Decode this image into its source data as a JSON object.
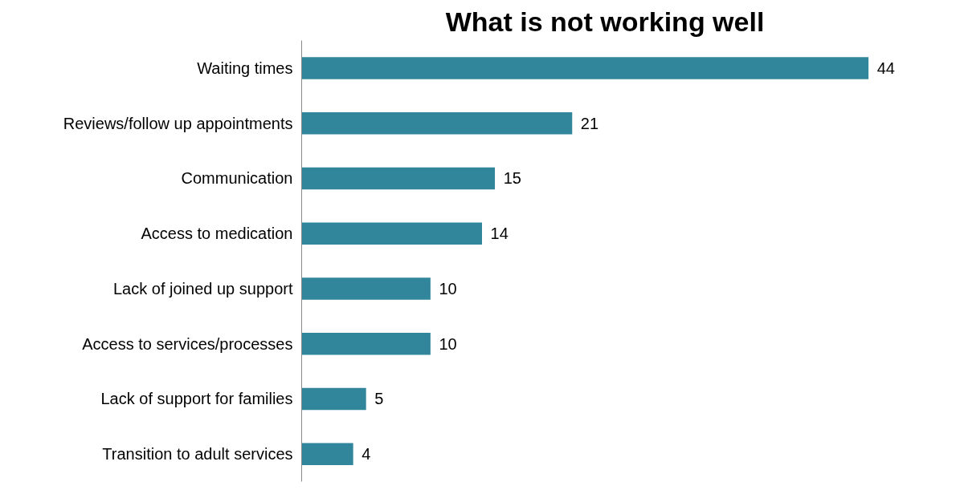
{
  "chart_data": {
    "type": "bar",
    "orientation": "horizontal",
    "title": "What is not working well",
    "categories": [
      "Waiting times",
      "Reviews/follow up appointments",
      "Communication",
      "Access to medication",
      "Lack of joined up support",
      "Access to services/processes",
      "Lack of support for families",
      "Transition to adult services"
    ],
    "values": [
      44,
      21,
      15,
      14,
      10,
      10,
      5,
      4
    ],
    "color": "#31869b",
    "data_labels": true,
    "grid": false
  }
}
